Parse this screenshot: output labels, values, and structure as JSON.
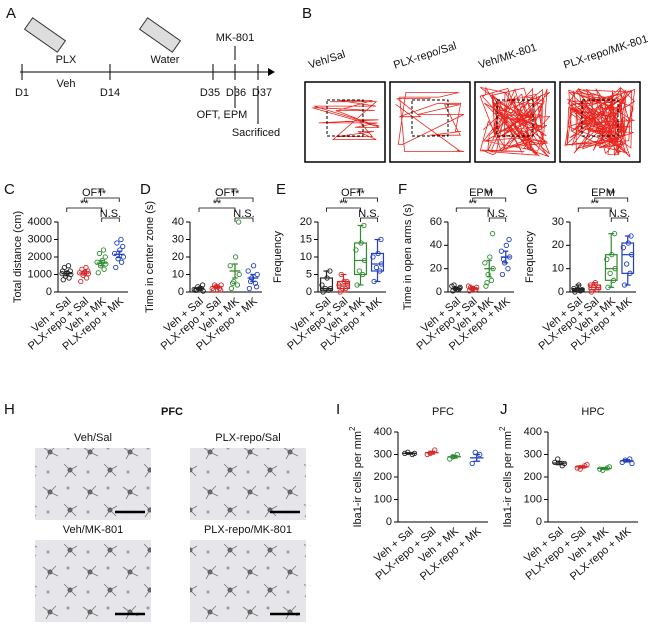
{
  "panel_labels": {
    "a": "A",
    "b": "B",
    "c": "C",
    "d": "D",
    "e": "E",
    "f": "F",
    "g": "G",
    "h": "H",
    "i": "I",
    "j": "J"
  },
  "timeline": {
    "plx": "PLX",
    "veh": "Veh",
    "water": "Water",
    "mk801": "MK-801",
    "days": [
      "D1",
      "D14",
      "D35",
      "D36",
      "D37"
    ],
    "tests": "OFT, EPM",
    "sacrificed": "Sacrificed"
  },
  "tracks": {
    "labels": [
      "Veh/Sal",
      "PLX-repo/Sal",
      "Veh/MK-801",
      "PLX-repo/MK-801"
    ]
  },
  "micrographs": {
    "region": "PFC",
    "labels": [
      "Veh/Sal",
      "PLX-repo/Sal",
      "Veh/MK-801",
      "PLX-repo/MK-801"
    ]
  },
  "chart_data": [
    {
      "type": "strip",
      "title": "OFT",
      "ylabel": "Total distance (cm)",
      "ylim": [
        0,
        4000
      ],
      "yticks": [
        0,
        1000,
        2000,
        3000,
        4000
      ],
      "annotations": [
        "**",
        "**",
        "N.S."
      ],
      "groups": [
        {
          "name": "Veh + Sal",
          "color": "#222222",
          "points": [
            700,
            800,
            900,
            1000,
            1050,
            1100,
            1200,
            1400,
            1500,
            1200
          ],
          "mean": 1050,
          "error": 120
        },
        {
          "name": "PLX-repo + Sal",
          "color": "#d62728",
          "points": [
            600,
            800,
            950,
            1050,
            1100,
            1150,
            1200,
            1300,
            1400
          ],
          "mean": 1080,
          "error": 110
        },
        {
          "name": "Veh + MK",
          "color": "#2e8b2e",
          "points": [
            1100,
            1300,
            1500,
            1600,
            1700,
            1800,
            2000,
            2200,
            2400
          ],
          "mean": 1650,
          "error": 150
        },
        {
          "name": "PLX-repo + MK",
          "color": "#1f3fbf",
          "points": [
            1400,
            1700,
            1900,
            2000,
            2200,
            2400,
            2600,
            2800,
            3000
          ],
          "mean": 2150,
          "error": 180
        }
      ]
    },
    {
      "type": "strip",
      "title": "OFT",
      "ylabel": "Time in center zone (s)",
      "ylim": [
        0,
        40
      ],
      "yticks": [
        0,
        10,
        20,
        30,
        40
      ],
      "annotations": [
        "**",
        "**",
        "N.S."
      ],
      "groups": [
        {
          "name": "Veh + Sal",
          "color": "#222222",
          "points": [
            1,
            2,
            3,
            0.5,
            1.5,
            2,
            4,
            1
          ],
          "mean": 2,
          "error": 0.5
        },
        {
          "name": "PLX-repo + Sal",
          "color": "#d62728",
          "points": [
            1,
            2,
            3,
            4,
            2,
            3,
            1,
            4
          ],
          "mean": 3,
          "error": 0.5
        },
        {
          "name": "Veh + MK",
          "color": "#2e8b2e",
          "points": [
            2,
            4,
            6,
            10,
            15,
            20,
            40,
            5
          ],
          "mean": 12,
          "error": 4
        },
        {
          "name": "PLX-repo + MK",
          "color": "#1f3fbf",
          "points": [
            2,
            5,
            8,
            10,
            12,
            15,
            3,
            6
          ],
          "mean": 8,
          "error": 2
        }
      ]
    },
    {
      "type": "box",
      "title": "OFT",
      "ylabel": "Frequency",
      "ylim": [
        0,
        20
      ],
      "yticks": [
        0,
        5,
        10,
        15,
        20
      ],
      "annotations": [
        "**",
        "**",
        "N.S."
      ],
      "groups": [
        {
          "name": "Veh + Sal",
          "color": "#222222",
          "points": [
            0,
            0.5,
            1,
            1,
            2,
            4,
            6
          ],
          "min": 0,
          "q1": 0.5,
          "median": 1,
          "q3": 4,
          "max": 6
        },
        {
          "name": "PLX-repo + Sal",
          "color": "#d62728",
          "points": [
            0,
            1,
            1,
            2,
            2,
            3,
            3,
            5
          ],
          "min": 0,
          "q1": 1,
          "median": 2,
          "q3": 3,
          "max": 5
        },
        {
          "name": "Veh + MK",
          "color": "#2e8b2e",
          "points": [
            2,
            5,
            6,
            9,
            12,
            14,
            19
          ],
          "min": 2,
          "q1": 5,
          "median": 9,
          "q3": 14,
          "max": 19
        },
        {
          "name": "PLX-repo + MK",
          "color": "#1f3fbf",
          "points": [
            3,
            6,
            7,
            8,
            10,
            11,
            15
          ],
          "min": 3,
          "q1": 6,
          "median": 8,
          "q3": 11,
          "max": 15
        }
      ]
    },
    {
      "type": "strip",
      "title": "EPM",
      "ylabel": "Time in open arms (s)",
      "ylim": [
        0,
        60
      ],
      "yticks": [
        0,
        20,
        40,
        60
      ],
      "annotations": [
        "**",
        "**",
        "N.S."
      ],
      "groups": [
        {
          "name": "Veh + Sal",
          "color": "#222222",
          "points": [
            1,
            2,
            3,
            4,
            5,
            2,
            3,
            6
          ],
          "mean": 3,
          "error": 1
        },
        {
          "name": "PLX-repo + Sal",
          "color": "#d62728",
          "points": [
            1,
            2,
            3,
            4,
            5,
            3,
            2,
            4
          ],
          "mean": 3,
          "error": 1
        },
        {
          "name": "Veh + MK",
          "color": "#2e8b2e",
          "points": [
            5,
            10,
            15,
            20,
            25,
            30,
            50,
            8
          ],
          "mean": 20,
          "error": 7
        },
        {
          "name": "PLX-repo + MK",
          "color": "#1f3fbf",
          "points": [
            15,
            20,
            25,
            30,
            35,
            40,
            45,
            28
          ],
          "mean": 30,
          "error": 5
        }
      ]
    },
    {
      "type": "box",
      "title": "EPM",
      "ylabel": "Frequency",
      "ylim": [
        0,
        30
      ],
      "yticks": [
        0,
        10,
        20,
        30
      ],
      "annotations": [
        "**",
        "**",
        "N.S."
      ],
      "groups": [
        {
          "name": "Veh + Sal",
          "color": "#222222",
          "points": [
            0,
            0.5,
            1,
            1,
            1.5,
            3
          ],
          "min": 0,
          "q1": 0.5,
          "median": 1,
          "q3": 1.5,
          "max": 3
        },
        {
          "name": "PLX-repo + Sal",
          "color": "#d62728",
          "points": [
            0,
            1,
            2,
            2,
            3,
            4
          ],
          "min": 0,
          "q1": 1,
          "median": 2,
          "q3": 3,
          "max": 4
        },
        {
          "name": "Veh + MK",
          "color": "#2e8b2e",
          "points": [
            2,
            5,
            8,
            10,
            14,
            16,
            25
          ],
          "min": 2,
          "q1": 5,
          "median": 10,
          "q3": 16,
          "max": 25
        },
        {
          "name": "PLX-repo + MK",
          "color": "#1f3fbf",
          "points": [
            3,
            8,
            12,
            16,
            19,
            21,
            24
          ],
          "min": 3,
          "q1": 8,
          "median": 16,
          "q3": 21,
          "max": 24
        }
      ]
    },
    {
      "type": "strip",
      "title": "PFC",
      "ylabel": "Iba1-ir cells per mm",
      "ylabel_sup": "2",
      "ylim": [
        0,
        400
      ],
      "yticks": [
        0,
        100,
        200,
        300,
        400
      ],
      "groups": [
        {
          "name": "Veh + Sal",
          "color": "#222222",
          "points": [
            305,
            300,
            310,
            305
          ],
          "mean": 305,
          "error": 3
        },
        {
          "name": "PLX-repo + Sal",
          "color": "#d62728",
          "points": [
            300,
            320,
            305
          ],
          "mean": 308,
          "error": 6
        },
        {
          "name": "Veh + MK",
          "color": "#2e8b2e",
          "points": [
            280,
            300,
            290
          ],
          "mean": 290,
          "error": 6
        },
        {
          "name": "PLX-repo + MK",
          "color": "#1f3fbf",
          "points": [
            260,
            300,
            310
          ],
          "mean": 285,
          "error": 15
        }
      ]
    },
    {
      "type": "strip",
      "title": "HPC",
      "ylabel": "Iba1-ir cells per mm",
      "ylabel_sup": "2",
      "ylim": [
        0,
        400
      ],
      "yticks": [
        0,
        100,
        200,
        300,
        400
      ],
      "groups": [
        {
          "name": "Veh + Sal",
          "color": "#222222",
          "points": [
            265,
            250,
            280,
            260
          ],
          "mean": 262,
          "error": 7
        },
        {
          "name": "PLX-repo + Sal",
          "color": "#d62728",
          "points": [
            240,
            250,
            235,
            255
          ],
          "mean": 245,
          "error": 5
        },
        {
          "name": "Veh + MK",
          "color": "#2e8b2e",
          "points": [
            235,
            240,
            230,
            245
          ],
          "mean": 238,
          "error": 4
        },
        {
          "name": "PLX-repo + MK",
          "color": "#1f3fbf",
          "points": [
            265,
            280,
            275,
            260
          ],
          "mean": 272,
          "error": 5
        }
      ]
    }
  ]
}
